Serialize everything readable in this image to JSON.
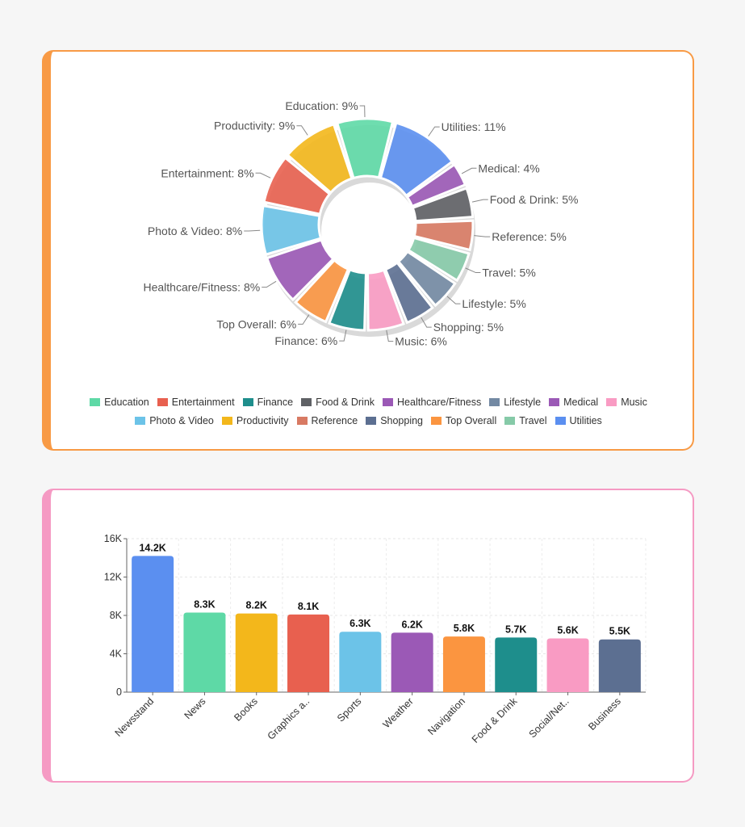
{
  "chart_data": [
    {
      "type": "pie",
      "title": "",
      "slices": [
        {
          "label": "Utilities",
          "value": 11,
          "text": "Utilities: 11%",
          "color": "#5b8ff0"
        },
        {
          "label": "Medical",
          "value": 4,
          "text": "Medical: 4%",
          "color": "#9b59b6"
        },
        {
          "label": "Food & Drink",
          "value": 5,
          "text": "Food & Drink: 5%",
          "color": "#5f6165"
        },
        {
          "label": "Reference",
          "value": 5,
          "text": "Reference: 5%",
          "color": "#d87a63"
        },
        {
          "label": "Travel",
          "value": 5,
          "text": "Travel: 5%",
          "color": "#86caa8"
        },
        {
          "label": "Lifestyle",
          "value": 5,
          "text": "Lifestyle: 5%",
          "color": "#7389a3"
        },
        {
          "label": "Shopping",
          "value": 5,
          "text": "Shopping: 5%",
          "color": "#5c6f91"
        },
        {
          "label": "Music",
          "value": 6,
          "text": "Music: 6%",
          "color": "#f99bc3"
        },
        {
          "label": "Finance",
          "value": 6,
          "text": "Finance: 6%",
          "color": "#1e8e8c"
        },
        {
          "label": "Top Overall",
          "value": 6,
          "text": "Top Overall: 6%",
          "color": "#fb9540"
        },
        {
          "label": "Healthcare/Fitness",
          "value": 8,
          "text": "Healthcare/Fitness: 8%",
          "color": "#9b59b6"
        },
        {
          "label": "Photo & Video",
          "value": 8,
          "text": "Photo & Video: 8%",
          "color": "#6cc3e8"
        },
        {
          "label": "Entertainment",
          "value": 8,
          "text": "Entertainment: 8%",
          "color": "#e8604f"
        },
        {
          "label": "Productivity",
          "value": 9,
          "text": "Productivity: 9%",
          "color": "#f3b71b"
        },
        {
          "label": "Education",
          "value": 9,
          "text": "Education: 9%",
          "color": "#5ed9a6"
        }
      ],
      "legend": [
        {
          "label": "Education",
          "color": "#5ed9a6"
        },
        {
          "label": "Entertainment",
          "color": "#e8604f"
        },
        {
          "label": "Finance",
          "color": "#1e8e8c"
        },
        {
          "label": "Food & Drink",
          "color": "#5f6165"
        },
        {
          "label": "Healthcare/Fitness",
          "color": "#9b59b6"
        },
        {
          "label": "Lifestyle",
          "color": "#7389a3"
        },
        {
          "label": "Medical",
          "color": "#9b59b6"
        },
        {
          "label": "Music",
          "color": "#f99bc3"
        },
        {
          "label": "Photo & Video",
          "color": "#6cc3e8"
        },
        {
          "label": "Productivity",
          "color": "#f3b71b"
        },
        {
          "label": "Reference",
          "color": "#d87a63"
        },
        {
          "label": "Shopping",
          "color": "#5c6f91"
        },
        {
          "label": "Top Overall",
          "color": "#fb9540"
        },
        {
          "label": "Travel",
          "color": "#86caa8"
        },
        {
          "label": "Utilities",
          "color": "#5b8ff0"
        }
      ],
      "legend_position": "bottom"
    },
    {
      "type": "bar",
      "title": "",
      "categories": [
        "Newsstand",
        "News",
        "Books",
        "Graphics a..",
        "Sports",
        "Weather",
        "Navigation",
        "Food & Drink",
        "Social/Net..",
        "Business"
      ],
      "values": [
        14200,
        8300,
        8200,
        8100,
        6300,
        6200,
        5800,
        5700,
        5600,
        5500
      ],
      "value_labels": [
        "14.2K",
        "8.3K",
        "8.2K",
        "8.1K",
        "6.3K",
        "6.2K",
        "5.8K",
        "5.7K",
        "5.6K",
        "5.5K"
      ],
      "colors": [
        "#5b8ff0",
        "#5ed9a6",
        "#f3b71b",
        "#e8604f",
        "#6cc3e8",
        "#9b59b6",
        "#fb9540",
        "#1e8e8c",
        "#f99bc3",
        "#5c6f91"
      ],
      "yticks": [
        0,
        4000,
        8000,
        12000,
        16000
      ],
      "ytick_labels": [
        "0",
        "4K",
        "8K",
        "12K",
        "16K"
      ],
      "ylim": [
        0,
        16000
      ],
      "xlabel": "",
      "ylabel": "",
      "grid": true
    }
  ]
}
